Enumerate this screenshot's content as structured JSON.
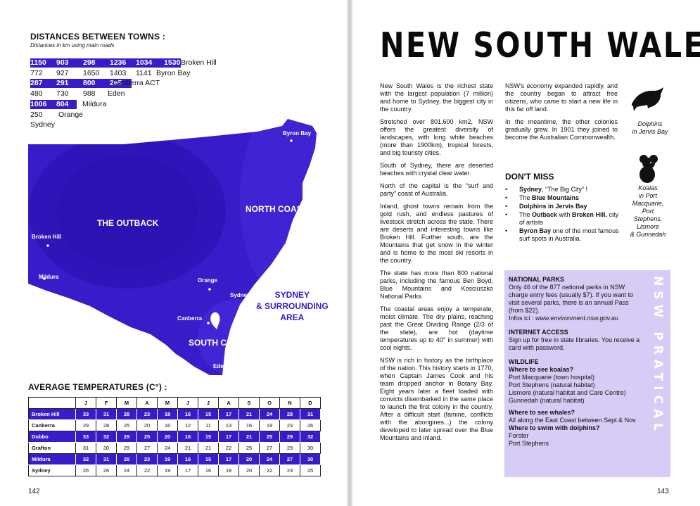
{
  "left": {
    "distances_title": "DISTANCES BETWEEN TOWNS :",
    "distances_sub": "Distances in km using main roads",
    "distance_rows": [
      {
        "values": [
          "1150",
          "903",
          "298",
          "1236",
          "1034",
          "1530"
        ],
        "town": "Broken Hill",
        "highlight": true
      },
      {
        "values": [
          "772",
          "927",
          "1650",
          "1403",
          "1141"
        ],
        "town": "Byron Bay",
        "highlight": false
      },
      {
        "values": [
          "287",
          "291",
          "800",
          "265"
        ],
        "town": "Canberra ACT",
        "highlight": true
      },
      {
        "values": [
          "480",
          "730",
          "988"
        ],
        "town": "Eden",
        "highlight": false
      },
      {
        "values": [
          "1006",
          "804"
        ],
        "town": "Mildura",
        "highlight": true
      },
      {
        "values": [
          "250"
        ],
        "town": "Orange",
        "highlight": false
      },
      {
        "values": [],
        "town": "Sydney",
        "highlight": false
      }
    ],
    "map": {
      "outback": "THE OUTBACK",
      "north_coast": "NORTH COAST",
      "south_coast": "SOUTH COAST",
      "sydney_area": [
        "SYDNEY",
        "& SURROUNDING",
        "AREA"
      ],
      "towns": {
        "byron": "Byron Bay",
        "broken": "Broken Hill",
        "mildura": "Mildura",
        "orange": "Orange",
        "sydney": "Sydney",
        "canberra": "Canberra",
        "eden": "Eden"
      },
      "fill": "#3a1bc9"
    },
    "temps_title": "AVERAGE TEMPERATURES (C°) :",
    "temps_months": [
      "J",
      "F",
      "M",
      "A",
      "M",
      "J",
      "J",
      "A",
      "S",
      "O",
      "N",
      "D"
    ],
    "temps_rows": [
      {
        "town": "Broken Hill",
        "values": [
          "33",
          "31",
          "28",
          "23",
          "18",
          "16",
          "15",
          "17",
          "21",
          "24",
          "28",
          "31"
        ],
        "highlight": true
      },
      {
        "town": "Canberra",
        "values": [
          "29",
          "28",
          "25",
          "20",
          "16",
          "12",
          "11",
          "13",
          "16",
          "19",
          "23",
          "26"
        ],
        "highlight": false
      },
      {
        "town": "Dubbo",
        "values": [
          "33",
          "32",
          "29",
          "25",
          "20",
          "16",
          "15",
          "17",
          "21",
          "25",
          "29",
          "32"
        ],
        "highlight": true
      },
      {
        "town": "Grafton",
        "values": [
          "31",
          "30",
          "29",
          "27",
          "24",
          "21",
          "21",
          "22",
          "25",
          "27",
          "29",
          "30"
        ],
        "highlight": false
      },
      {
        "town": "Mildura",
        "values": [
          "32",
          "31",
          "28",
          "23",
          "19",
          "16",
          "15",
          "17",
          "20",
          "24",
          "27",
          "30"
        ],
        "highlight": true
      },
      {
        "town": "Sydney",
        "values": [
          "26",
          "26",
          "24",
          "22",
          "19",
          "17",
          "16",
          "18",
          "20",
          "22",
          "23",
          "25"
        ],
        "highlight": false
      }
    ],
    "page_number": "142"
  },
  "right": {
    "title": "NEW SOUTH WALES",
    "col1": [
      "New South Wales is the richest state with the largest population (7 million) and home to Sydney, the biggest city in the country.",
      "Stretched over 801.600 km2, NSW offers the greatest diversity of landscapes, with long white beaches (more than 1900km), tropical forests, and big touristy cities.",
      "South of Sydney, there are deserted beaches with crystal clear water.",
      "North of the capital is the “surf and party” coast of Australia.",
      "Inland, ghost towns remain from the gold rush, and endless pastures of livestock stretch across the state. There are deserts and interesting towns like Broken Hill. Further south, are the Mountains that get snow in the winter and is home to the most ski resorts in the country.",
      "The state has more than 800 national parks, including the famous Ben Boyd, Blue Mountains and Kosciuszko National Parks.",
      "The coastal areas enjoy a temperate, moist climate. The dry plains, reaching past the Great Dividing Range (2/3 of the state), are hot (daytime temperatures up to 40° in summer) with cool nights.",
      "NSW is rich in history as the birthplace of the nation. This history starts in 1770, when Captain James Cook and his team dropped anchor in Botany Bay. Eight years later a fleet loaded with convicts disembarked in the same place to launch the first colony in the country. After a difficult start (famine, conflicts with the aborigines...) the colony developed to later spread over the Blue Mountains and inland."
    ],
    "col2": [
      "NSW's economy expanded rapidly, and the country began to attract free citizens, who came to start a new life in this far off land.",
      "In the meantime, the other colonies gradually grew. In 1901 they joined to become the Australian Commonwealth."
    ],
    "dont_miss_title": "DON'T MISS",
    "dont_miss": [
      {
        "bold": "Sydney",
        "rest": ", “The Big City” !"
      },
      {
        "pre": "The ",
        "bold": "Blue Mountains",
        "rest": ""
      },
      {
        "bold": "Dolphins in Jervis Bay",
        "rest": ""
      },
      {
        "pre": "The ",
        "bold": "Outback",
        "mid": " with ",
        "bold2": "Broken Hill,",
        "rest": " city of artists"
      },
      {
        "bold": "Byron Bay",
        "rest": " one of the most famous surf spots in Australia."
      }
    ],
    "caption_dolphins": [
      "Dolphins",
      "in Jervis Bay"
    ],
    "caption_koalas": [
      "Koalas",
      "in Port",
      "Macquarie,",
      "Port",
      "Stephens,",
      "Lismore",
      "& Gunnedah"
    ],
    "box": {
      "parks_h": "NATIONAL PARKS",
      "parks_t": "Only 46 of the 877 national parks in NSW charge entry fees (usually $7). If you want to visit several parks, there is an annual Pass (from $22).",
      "infos_label": "Infos ici : ",
      "infos_url": "www.environment.nsw.gov.au",
      "internet_h": "INTERNET ACCESS",
      "internet_t": "Sign up for free in state libraries. You receive a card with password.",
      "wildlife_h": "WILDLIFE",
      "koalas_q": "Where to see koalas?",
      "koalas_list": [
        "Port Macquarie (town hospital)",
        "Port Stephens (natural habitat)",
        "Lismore (natural habitat and Care Centre)",
        "Gunnedah (natural habitat)"
      ],
      "whales_q": "Where to see whales?",
      "whales_t": "All along the East Coast between Sept & Nov",
      "dolphins_q_pre": "Where to swim with ",
      "dolphins_q_bold": "dolphins?",
      "dolphins_list": [
        "Forster",
        "Port Stephens"
      ],
      "vertical": "NSW PRATICAL",
      "bg": "#d7ccf5"
    },
    "page_number": "143"
  }
}
